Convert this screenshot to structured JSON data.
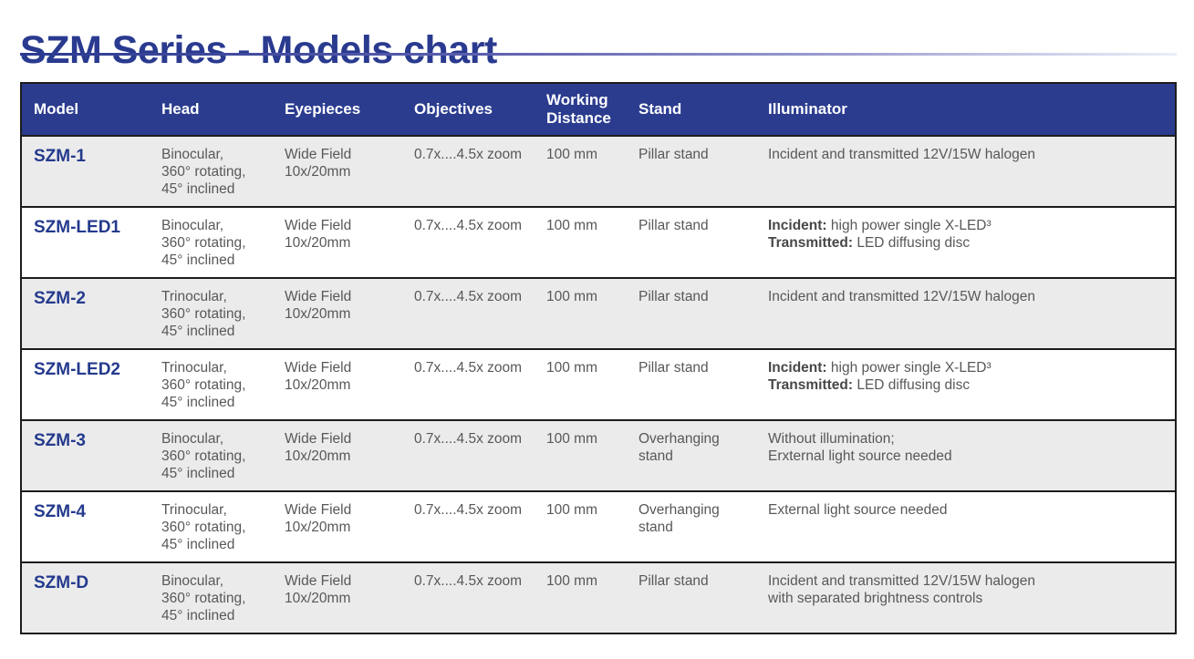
{
  "title": {
    "brand": "SZM",
    "middle": " Series - ",
    "suffix": "Models chart"
  },
  "colors": {
    "brand_blue": "#2b3c8f",
    "title_blue": "#293a8f",
    "model_blue": "#243a8d",
    "row_gray": "#ebebeb",
    "body_text_gray": "#58585a",
    "rule_dark": "#1c1c1c"
  },
  "table": {
    "columns": [
      "Model",
      "Head",
      "Eyepieces",
      "Objectives",
      "Working Distance",
      "Stand",
      "Illuminator"
    ],
    "rows": [
      {
        "model": "SZM-1",
        "head": [
          "Binocular,",
          "360° rotating,",
          "45° inclined"
        ],
        "eyepieces": [
          "Wide Field",
          "10x/20mm"
        ],
        "objectives": "0.7x....4.5x zoom",
        "working_distance": "100 mm",
        "stand": [
          "Pillar stand"
        ],
        "illuminator": [
          {
            "bold": "",
            "text": "Incident and transmitted 12V/15W halogen"
          }
        ]
      },
      {
        "model": "SZM-LED1",
        "head": [
          "Binocular,",
          "360° rotating,",
          "45° inclined"
        ],
        "eyepieces": [
          "Wide Field",
          "10x/20mm"
        ],
        "objectives": "0.7x....4.5x zoom",
        "working_distance": "100 mm",
        "stand": [
          "Pillar stand"
        ],
        "illuminator": [
          {
            "bold": "Incident:",
            "text": " high power single X-LED³"
          },
          {
            "bold": "Transmitted:",
            "text": " LED diffusing disc"
          }
        ]
      },
      {
        "model": "SZM-2",
        "head": [
          "Trinocular,",
          "360° rotating,",
          "45° inclined"
        ],
        "eyepieces": [
          "Wide Field",
          "10x/20mm"
        ],
        "objectives": "0.7x....4.5x zoom",
        "working_distance": "100 mm",
        "stand": [
          "Pillar stand"
        ],
        "illuminator": [
          {
            "bold": "",
            "text": "Incident and transmitted 12V/15W halogen"
          }
        ]
      },
      {
        "model": "SZM-LED2",
        "head": [
          "Trinocular,",
          "360° rotating,",
          "45° inclined"
        ],
        "eyepieces": [
          "Wide Field",
          "10x/20mm"
        ],
        "objectives": "0.7x....4.5x zoom",
        "working_distance": "100 mm",
        "stand": [
          "Pillar stand"
        ],
        "illuminator": [
          {
            "bold": "Incident:",
            "text": " high power single X-LED³"
          },
          {
            "bold": "Transmitted:",
            "text": " LED diffusing disc"
          }
        ]
      },
      {
        "model": "SZM-3",
        "head": [
          "Binocular,",
          "360° rotating,",
          "45° inclined"
        ],
        "eyepieces": [
          "Wide Field",
          "10x/20mm"
        ],
        "objectives": "0.7x....4.5x zoom",
        "working_distance": "100 mm",
        "stand": [
          "Overhanging",
          "stand"
        ],
        "illuminator": [
          {
            "bold": "",
            "text": "Without illumination;"
          },
          {
            "bold": "",
            "text": "Erxternal light source needed"
          }
        ]
      },
      {
        "model": "SZM-4",
        "head": [
          "Trinocular,",
          "360° rotating,",
          "45° inclined"
        ],
        "eyepieces": [
          "Wide Field",
          "10x/20mm"
        ],
        "objectives": "0.7x....4.5x zoom",
        "working_distance": "100 mm",
        "stand": [
          "Overhanging",
          "stand"
        ],
        "illuminator": [
          {
            "bold": "",
            "text": "External light source needed"
          }
        ]
      },
      {
        "model": "SZM-D",
        "head": [
          "Binocular,",
          "360° rotating,",
          "45° inclined"
        ],
        "eyepieces": [
          "Wide Field",
          "10x/20mm"
        ],
        "objectives": "0.7x....4.5x zoom",
        "working_distance": "100 mm",
        "stand": [
          "Pillar stand"
        ],
        "illuminator": [
          {
            "bold": "",
            "text": "Incident and transmitted 12V/15W halogen"
          },
          {
            "bold": "",
            "text": "with separated brightness controls"
          }
        ]
      }
    ]
  }
}
